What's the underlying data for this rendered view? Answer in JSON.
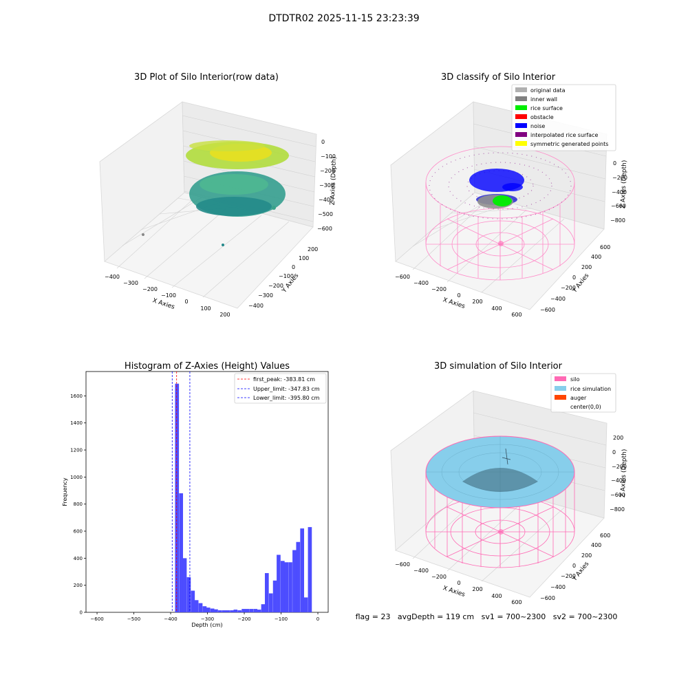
{
  "figure_title": "DTDTR02 2025-11-15 23:23:39",
  "chart_data": [
    {
      "type": "scatter3d",
      "title": "3D Plot of Silo Interior(row data)",
      "xlabel": "X Axies",
      "ylabel": "Y Axies",
      "zlabel": "Z Axies (Depth)",
      "xticks": [
        "−400",
        "−300",
        "−200",
        "−100",
        "0",
        "100",
        "200"
      ],
      "yticks": [
        "200",
        "100",
        "0",
        "−100",
        "−200",
        "−300",
        "−400"
      ],
      "zticks": [
        "0",
        "−100",
        "−200",
        "−300",
        "−400",
        "−500",
        "−600"
      ],
      "xlim": [
        -450,
        230
      ],
      "ylim": [
        -450,
        230
      ],
      "zlim": [
        -650,
        0
      ],
      "grid": true
    },
    {
      "type": "scatter3d",
      "title": "3D classify of Silo Interior",
      "xlabel": "X Axies",
      "ylabel": "Y Axies",
      "zlabel": "Z Axies (Depth)",
      "xticks": [
        "−600",
        "−400",
        "−200",
        "0",
        "200",
        "400",
        "600"
      ],
      "yticks": [
        "600",
        "400",
        "200",
        "0",
        "−200",
        "−400",
        "−600"
      ],
      "zticks": [
        "0",
        "−200",
        "−400",
        "−600",
        "−800"
      ],
      "legend_position": "top-right",
      "legend": [
        {
          "label": "original data",
          "color": "#b0b0b0"
        },
        {
          "label": "inner wall",
          "color": "#808080"
        },
        {
          "label": "rice surface",
          "color": "#00ee00"
        },
        {
          "label": "obstacle",
          "color": "#ff0000"
        },
        {
          "label": "noise",
          "color": "#0000ff"
        },
        {
          "label": "interpolated rice surface",
          "color": "#800080"
        },
        {
          "label": "symmetric generated points",
          "color": "#ffff00"
        }
      ],
      "grid": true
    },
    {
      "type": "bar",
      "title": "Histogram of Z-Axies (Height) Values",
      "xlabel": "Depth (cm)",
      "ylabel": "Frequency",
      "xlim": [
        -630,
        28
      ],
      "ylim": [
        0,
        1780
      ],
      "xticks": [
        -600,
        -500,
        -400,
        -300,
        -200,
        -100,
        0
      ],
      "xtick_labels": [
        "−600",
        "−500",
        "−400",
        "−300",
        "−200",
        "−100",
        "0"
      ],
      "yticks": [
        0,
        200,
        400,
        600,
        800,
        1000,
        1200,
        1400,
        1600
      ],
      "bin_width": 10.6,
      "bins": [
        [
          -388,
          1690
        ],
        [
          -377,
          880
        ],
        [
          -367,
          400
        ],
        [
          -356,
          260
        ],
        [
          -345,
          160
        ],
        [
          -335,
          90
        ],
        [
          -324,
          68
        ],
        [
          -313,
          45
        ],
        [
          -303,
          35
        ],
        [
          -292,
          28
        ],
        [
          -282,
          22
        ],
        [
          -271,
          15
        ],
        [
          -260,
          15
        ],
        [
          -250,
          15
        ],
        [
          -239,
          15
        ],
        [
          -229,
          20
        ],
        [
          -218,
          15
        ],
        [
          -207,
          25
        ],
        [
          -197,
          25
        ],
        [
          -186,
          25
        ],
        [
          -175,
          25
        ],
        [
          -165,
          20
        ],
        [
          -154,
          60
        ],
        [
          -144,
          290
        ],
        [
          -133,
          140
        ],
        [
          -122,
          235
        ],
        [
          -112,
          425
        ],
        [
          -101,
          380
        ],
        [
          -91,
          370
        ],
        [
          -80,
          370
        ],
        [
          -69,
          460
        ],
        [
          -59,
          520
        ],
        [
          -48,
          620
        ],
        [
          -38,
          110
        ],
        [
          -27,
          630
        ]
      ],
      "bar_color": "#4d4dff",
      "reference_lines": [
        {
          "value": -383.81,
          "color": "#ff0000"
        },
        {
          "value": -347.83,
          "color": "#0000ff"
        },
        {
          "value": -395.8,
          "color": "#0000ff"
        }
      ],
      "legend_position": "top-right",
      "legend": [
        {
          "label": "first_peak: -383.81 cm",
          "color": "#ff0000"
        },
        {
          "label": "Upper_limit: -347.83 cm",
          "color": "#0000ff"
        },
        {
          "label": "Lower_limit: -395.80 cm",
          "color": "#0000ff"
        }
      ],
      "grid": false
    },
    {
      "type": "surface3d",
      "title": "3D simulation of Silo Interior",
      "xlabel": "X Axies",
      "ylabel": "Y Axies",
      "zlabel": "Z Axies (Depth)",
      "xticks": [
        "−600",
        "−400",
        "−200",
        "0",
        "200",
        "400",
        "600"
      ],
      "yticks": [
        "600",
        "400",
        "200",
        "0",
        "−200",
        "−400",
        "−600"
      ],
      "zticks": [
        "200",
        "0",
        "−200",
        "−400",
        "−600",
        "−800"
      ],
      "legend_position": "top-right",
      "legend": [
        {
          "label": "silo",
          "color": "#ff69b4"
        },
        {
          "label": "rice simulation",
          "color": "#87ceeb"
        },
        {
          "label": "auger",
          "color": "#ff4500"
        },
        {
          "label": "center(0,0)",
          "color": "#ffffff"
        }
      ],
      "grid": true
    }
  ],
  "footer_text": "flag = 23   avgDepth = 119 cm   sv1 = 700~2300   sv2 = 700~2300"
}
